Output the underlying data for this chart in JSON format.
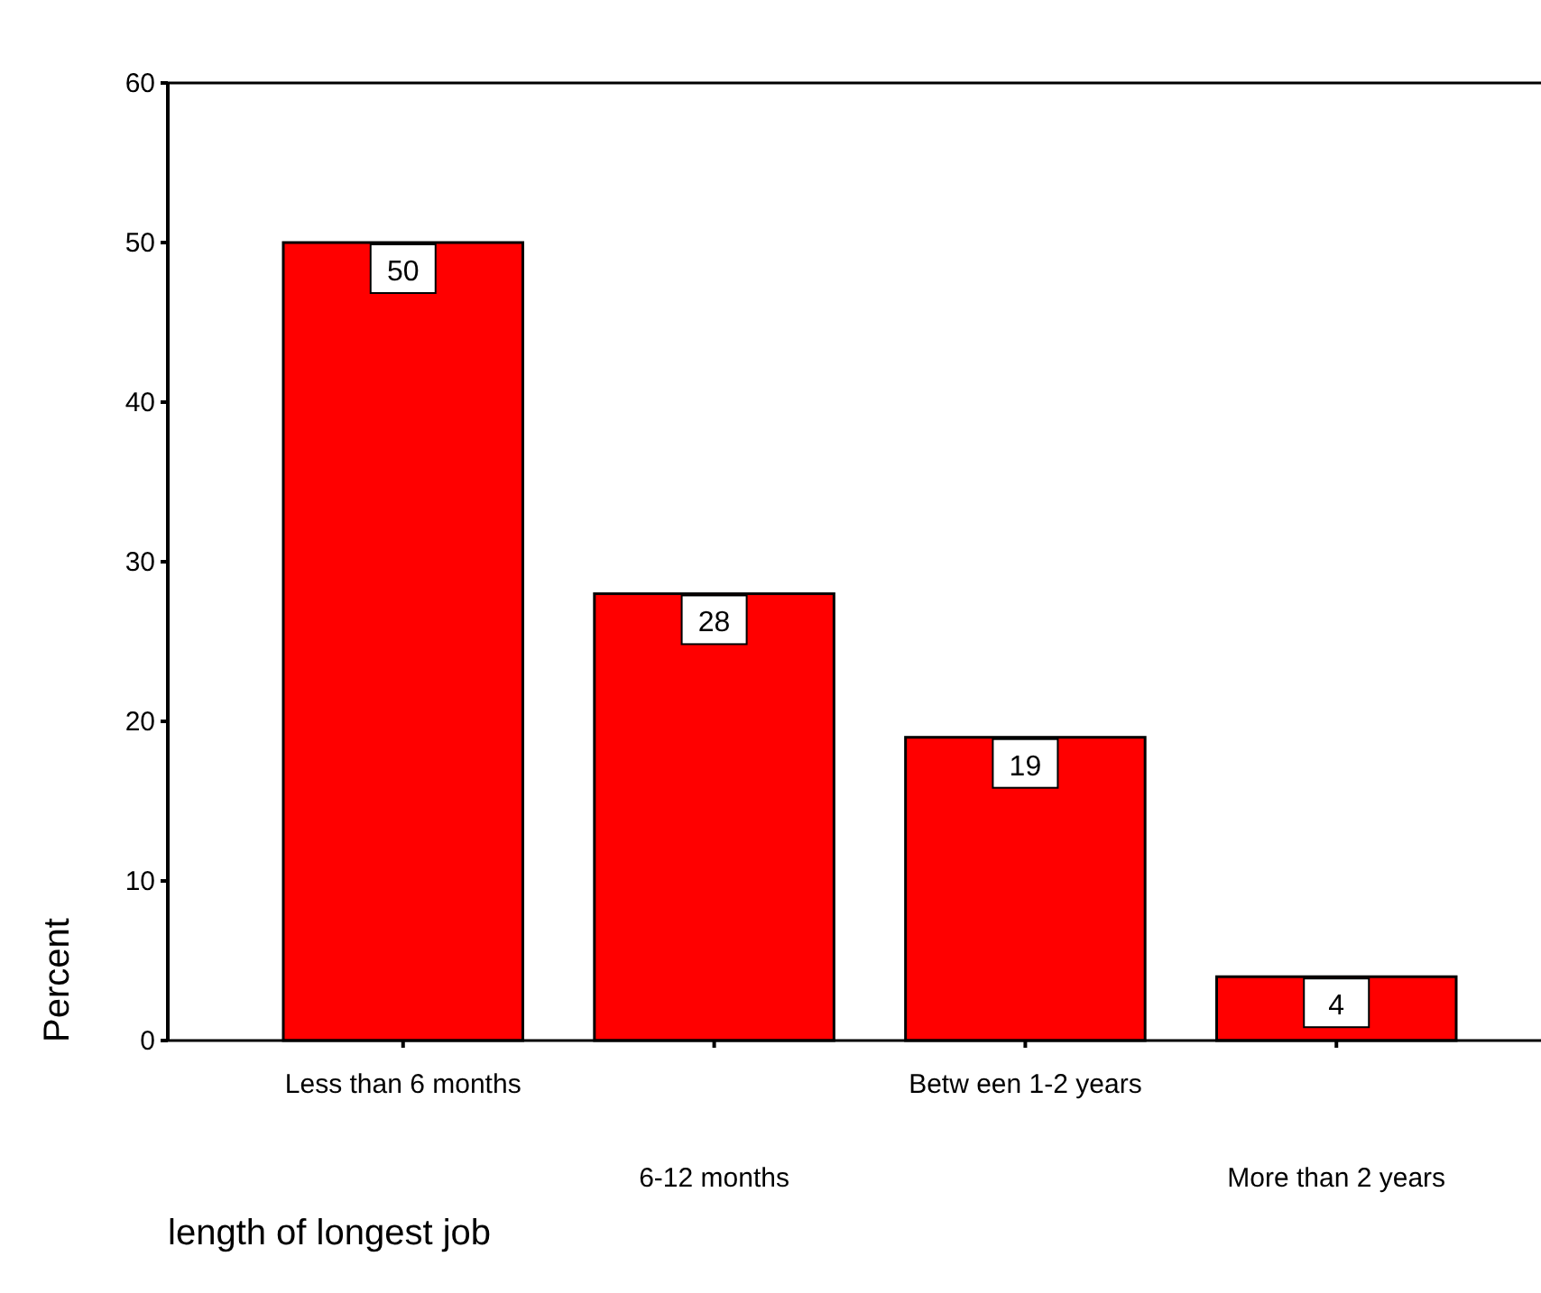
{
  "chart_data": {
    "type": "bar",
    "xlabel": "length of longest job",
    "ylabel": "Percent",
    "categories": [
      "Less than 6 months",
      "6-12 months",
      "Betw een 1-2 years",
      "More than 2 years"
    ],
    "values": [
      50,
      28,
      19,
      4
    ],
    "color": "#ff0000",
    "data_labels": true,
    "ylim": [
      0,
      60
    ],
    "yticks": [
      0,
      10,
      20,
      30,
      40,
      50,
      60
    ],
    "grid": false
  }
}
